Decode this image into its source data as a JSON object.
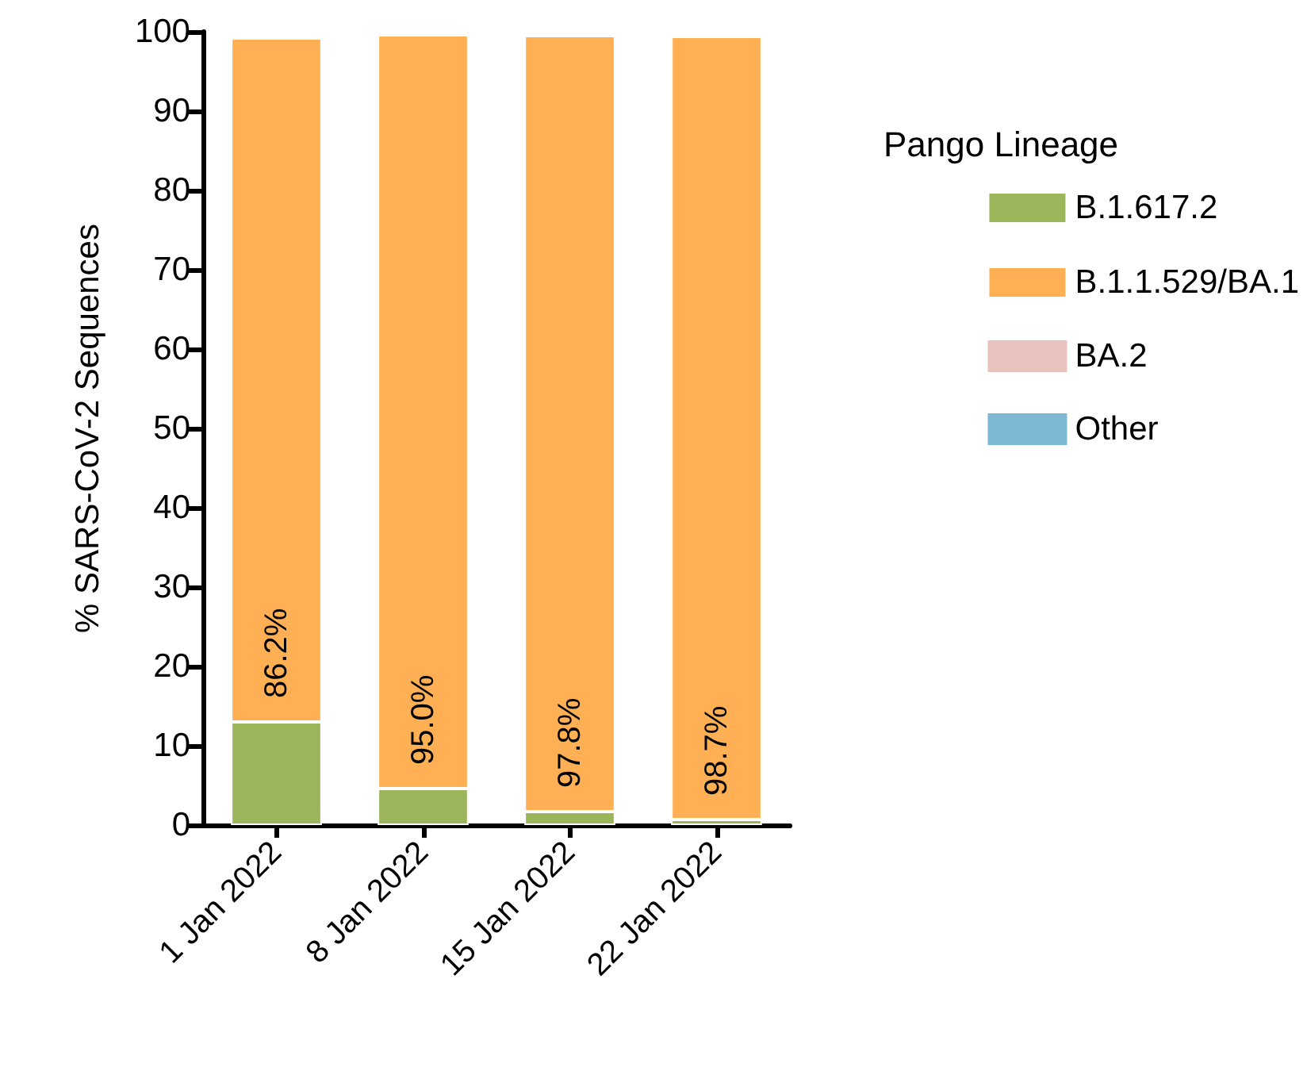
{
  "chart_data": {
    "type": "bar",
    "stacked": true,
    "ylabel": "% SARS-CoV-2 Sequences",
    "legend_title": "Pango Lineage",
    "legend": "right",
    "categories": [
      "1 Jan 2022",
      "8 Jan 2022",
      "15 Jan 2022",
      "22 Jan 2022"
    ],
    "series": [
      {
        "name": "B.1.617.2",
        "color": "#9bb55a",
        "values": [
          13.0,
          4.6,
          1.7,
          0.7
        ]
      },
      {
        "name": "B.1.1.529/BA.1",
        "color": "#ffb055",
        "values": [
          86.2,
          95.0,
          97.8,
          98.7
        ],
        "value_labels": [
          "86.2%",
          "95.0%",
          "97.8%",
          "98.7%"
        ]
      },
      {
        "name": "BA.2",
        "color": "#e8c3be",
        "values": [
          null,
          null,
          null,
          null
        ]
      },
      {
        "name": "Other",
        "color": "#7db9d2",
        "values": [
          null,
          null,
          null,
          null
        ]
      }
    ],
    "ylim": [
      0,
      100
    ],
    "yticks": [
      0,
      10,
      20,
      30,
      40,
      50,
      60,
      70,
      80,
      90,
      100
    ],
    "grid": false
  }
}
